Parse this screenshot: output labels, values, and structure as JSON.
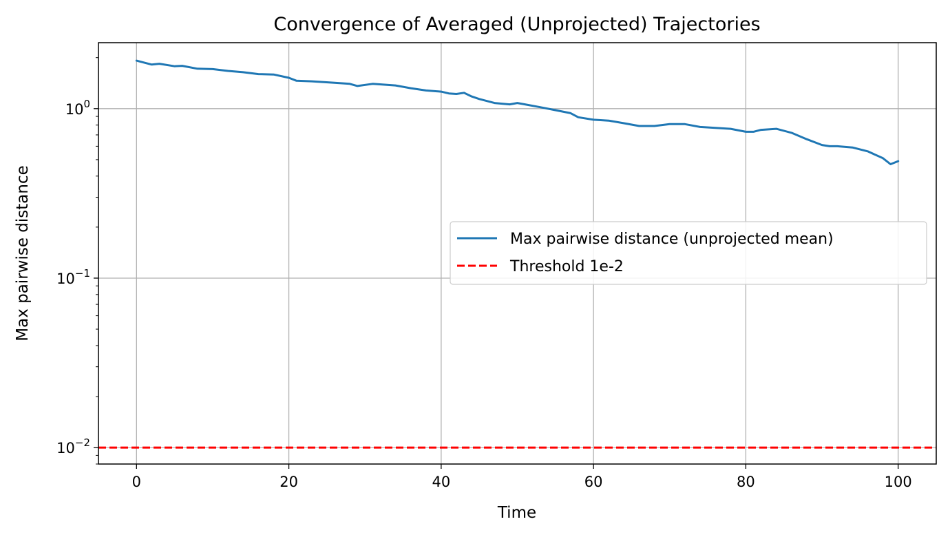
{
  "chart_data": {
    "type": "line",
    "title": "Convergence of Averaged (Unprojected) Trajectories",
    "xlabel": "Time",
    "ylabel": "Max pairwise distance",
    "xlim": [
      -5,
      105
    ],
    "ylim": [
      0.008,
      2.45
    ],
    "yscale": "log",
    "grid": true,
    "legend_position": "center-right",
    "x_ticks": [
      0,
      20,
      40,
      60,
      80,
      100
    ],
    "x_tick_labels": [
      "0",
      "20",
      "40",
      "60",
      "80",
      "100"
    ],
    "y_ticks": [
      0.01,
      0.1,
      1
    ],
    "y_tick_labels": [
      {
        "base": "10",
        "exp": "−2"
      },
      {
        "base": "10",
        "exp": "−1"
      },
      {
        "base": "10",
        "exp": "0"
      }
    ],
    "series": [
      {
        "name": "Max pairwise distance (unprojected mean)",
        "color": "#1f77b4",
        "style": "solid",
        "x": [
          0,
          2,
          3,
          5,
          6,
          8,
          10,
          12,
          14,
          16,
          18,
          20,
          21,
          23,
          26,
          28,
          29,
          31,
          34,
          36,
          38,
          40,
          41,
          42,
          43,
          44,
          45,
          47,
          49,
          50,
          51,
          53,
          55,
          57,
          58,
          60,
          62,
          64,
          66,
          68,
          70,
          72,
          74,
          76,
          78,
          80,
          81,
          82,
          84,
          86,
          88,
          90,
          91,
          92,
          94,
          96,
          98,
          99,
          100
        ],
        "y": [
          1.92,
          1.82,
          1.84,
          1.78,
          1.79,
          1.72,
          1.71,
          1.67,
          1.64,
          1.6,
          1.59,
          1.52,
          1.46,
          1.45,
          1.42,
          1.4,
          1.36,
          1.4,
          1.37,
          1.32,
          1.28,
          1.26,
          1.23,
          1.22,
          1.24,
          1.18,
          1.14,
          1.08,
          1.06,
          1.08,
          1.06,
          1.02,
          0.98,
          0.94,
          0.89,
          0.86,
          0.85,
          0.82,
          0.79,
          0.79,
          0.81,
          0.81,
          0.78,
          0.77,
          0.76,
          0.73,
          0.73,
          0.75,
          0.76,
          0.72,
          0.66,
          0.61,
          0.6,
          0.6,
          0.59,
          0.56,
          0.51,
          0.47,
          0.49
        ]
      },
      {
        "name": "Threshold 1e-2",
        "color": "#ff0000",
        "style": "dashed",
        "y_constant": 0.01
      }
    ]
  }
}
